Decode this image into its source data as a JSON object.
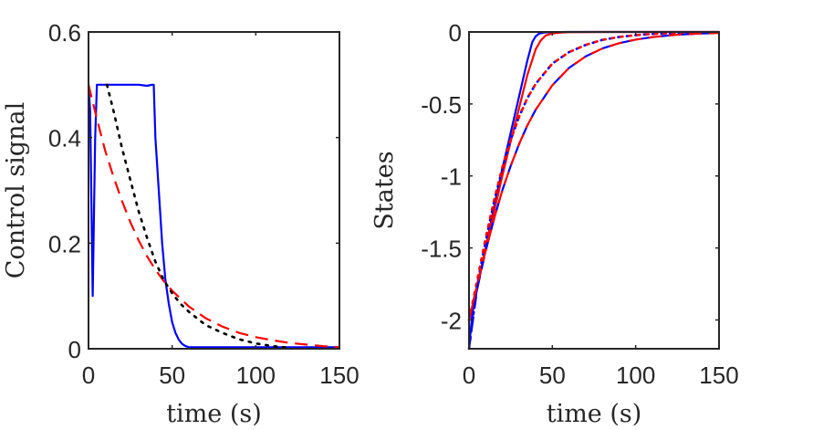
{
  "chart_data": [
    {
      "type": "line",
      "title": "",
      "xlabel": "time (s)",
      "ylabel": "Control signal",
      "xlim": [
        0,
        150
      ],
      "ylim": [
        0,
        0.6
      ],
      "xticks": [
        0,
        50,
        100,
        150
      ],
      "xtick_labels": [
        "0",
        "50",
        "100",
        "150"
      ],
      "yticks": [
        0,
        0.2,
        0.4,
        0.6
      ],
      "ytick_labels": [
        "0",
        "0.2",
        "0.4",
        "0.6"
      ],
      "grid": false,
      "legend": "none",
      "series": [
        {
          "name": "control-blue-solid",
          "color": "#0000ff",
          "style": "solid",
          "x": [
            0,
            1,
            2.5,
            4,
            5,
            6,
            10,
            20,
            30,
            35,
            38,
            39,
            40,
            42,
            44,
            46,
            48,
            50,
            52,
            54,
            56,
            58,
            60,
            65,
            80,
            100,
            120,
            150
          ],
          "y": [
            0.5,
            0.45,
            0.1,
            0.4,
            0.5,
            0.5,
            0.5,
            0.5,
            0.5,
            0.498,
            0.5,
            0.5,
            0.4,
            0.3,
            0.2,
            0.13,
            0.085,
            0.05,
            0.03,
            0.017,
            0.009,
            0.005,
            0.003,
            0.003,
            0.003,
            0.003,
            0.003,
            0.003
          ]
        },
        {
          "name": "control-red-dashed",
          "color": "#ff0000",
          "style": "dashed",
          "x": [
            0,
            5,
            10,
            15,
            20,
            25,
            30,
            35,
            40,
            45,
            50,
            60,
            70,
            80,
            90,
            100,
            110,
            120,
            130,
            140,
            150
          ],
          "y": [
            0.5,
            0.435,
            0.375,
            0.325,
            0.28,
            0.24,
            0.205,
            0.175,
            0.15,
            0.128,
            0.11,
            0.08,
            0.058,
            0.042,
            0.03,
            0.022,
            0.016,
            0.011,
            0.008,
            0.005,
            0.003
          ]
        },
        {
          "name": "control-black-dotted",
          "color": "#000000",
          "style": "dotted",
          "x": [
            11,
            15,
            20,
            25,
            30,
            35,
            40,
            45,
            50,
            55,
            60,
            70,
            80,
            90,
            100,
            110,
            120
          ],
          "y": [
            0.5,
            0.45,
            0.38,
            0.32,
            0.26,
            0.21,
            0.165,
            0.13,
            0.105,
            0.085,
            0.07,
            0.045,
            0.03,
            0.018,
            0.01,
            0.005,
            0.002
          ]
        }
      ]
    },
    {
      "type": "line",
      "title": "",
      "xlabel": "time (s)",
      "ylabel": "States",
      "xlim": [
        0,
        150
      ],
      "ylim": [
        -2.2,
        0
      ],
      "xticks": [
        0,
        50,
        100,
        150
      ],
      "xtick_labels": [
        "0",
        "50",
        "100",
        "150"
      ],
      "yticks": [
        -2,
        -1.5,
        -1,
        -0.5,
        0
      ],
      "ytick_labels": [
        "-2",
        "-1.5",
        "-1",
        "-0.5",
        "0"
      ],
      "grid": false,
      "legend": "none",
      "series": [
        {
          "name": "state1-blue-solid",
          "color": "#0000ff",
          "style": "solid",
          "x": [
            0,
            2,
            5,
            10,
            15,
            20,
            25,
            30,
            35,
            38,
            40,
            42,
            45,
            50,
            60,
            80,
            100,
            150
          ],
          "y": [
            -2.2,
            -1.95,
            -1.78,
            -1.5,
            -1.22,
            -0.95,
            -0.7,
            -0.45,
            -0.2,
            -0.07,
            -0.03,
            -0.012,
            -0.004,
            -0.001,
            0,
            0,
            0,
            0
          ]
        },
        {
          "name": "state1-red-solid",
          "color": "#ff0000",
          "style": "solid",
          "x": [
            0,
            2,
            5,
            10,
            15,
            20,
            25,
            30,
            35,
            40,
            43,
            46,
            50,
            55,
            60,
            80,
            100,
            150
          ],
          "y": [
            -2.0,
            -1.9,
            -1.75,
            -1.5,
            -1.25,
            -1.0,
            -0.76,
            -0.53,
            -0.3,
            -0.12,
            -0.06,
            -0.025,
            -0.01,
            -0.004,
            -0.001,
            0,
            0,
            0
          ]
        },
        {
          "name": "state2-blue-dotted",
          "color": "#0000ff",
          "style": "dotted",
          "x": [
            0,
            5,
            10,
            15,
            20,
            25,
            30,
            35,
            40,
            50,
            60,
            70,
            80,
            90,
            100,
            110,
            120,
            130,
            140,
            150
          ],
          "y": [
            -2.2,
            -1.75,
            -1.45,
            -1.18,
            -0.95,
            -0.75,
            -0.59,
            -0.46,
            -0.36,
            -0.22,
            -0.14,
            -0.09,
            -0.055,
            -0.035,
            -0.022,
            -0.014,
            -0.009,
            -0.006,
            -0.004,
            -0.002
          ]
        },
        {
          "name": "state2-red-dotted",
          "color": "#ff0000",
          "style": "dotted",
          "x": [
            0,
            5,
            10,
            15,
            20,
            25,
            30,
            35,
            40,
            50,
            60,
            70,
            80,
            90,
            100,
            110,
            120,
            130,
            140,
            150
          ],
          "y": [
            -2.0,
            -1.72,
            -1.43,
            -1.17,
            -0.94,
            -0.75,
            -0.59,
            -0.46,
            -0.36,
            -0.22,
            -0.14,
            -0.09,
            -0.055,
            -0.035,
            -0.022,
            -0.014,
            -0.009,
            -0.006,
            -0.004,
            -0.002
          ]
        },
        {
          "name": "state3-blue-dashed",
          "color": "#0000ff",
          "style": "dashed",
          "x": [
            0,
            5,
            10,
            15,
            20,
            25,
            30,
            35,
            40,
            50,
            60,
            70,
            80,
            90,
            100,
            110,
            120,
            130,
            140,
            150
          ],
          "y": [
            -2.2,
            -1.78,
            -1.52,
            -1.3,
            -1.1,
            -0.93,
            -0.78,
            -0.65,
            -0.54,
            -0.37,
            -0.25,
            -0.17,
            -0.115,
            -0.078,
            -0.053,
            -0.036,
            -0.024,
            -0.016,
            -0.011,
            -0.007
          ]
        },
        {
          "name": "state3-red-dashed",
          "color": "#ff0000",
          "style": "dashed",
          "x": [
            0,
            5,
            10,
            15,
            20,
            25,
            30,
            35,
            40,
            50,
            60,
            70,
            80,
            90,
            100,
            110,
            120,
            130,
            140,
            150
          ],
          "y": [
            -2.0,
            -1.75,
            -1.52,
            -1.3,
            -1.1,
            -0.93,
            -0.78,
            -0.65,
            -0.54,
            -0.37,
            -0.25,
            -0.17,
            -0.115,
            -0.078,
            -0.053,
            -0.036,
            -0.024,
            -0.016,
            -0.011,
            -0.007
          ]
        }
      ]
    }
  ]
}
